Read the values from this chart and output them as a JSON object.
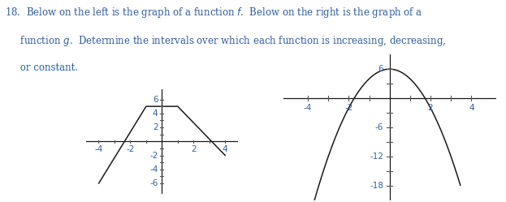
{
  "text_color": "#2e5fa3",
  "graph_bg": "#ffffff",
  "left_graph": {
    "x": [
      -4,
      -1,
      1,
      4
    ],
    "y": [
      -6,
      5,
      5,
      -2
    ],
    "xlim": [
      -4.8,
      4.8
    ],
    "ylim": [
      -7.5,
      7.5
    ],
    "x_ticks_minor": [
      -4,
      -3,
      -2,
      -1,
      1,
      2,
      3,
      4
    ],
    "y_ticks_minor": [
      -6,
      -5,
      -4,
      -3,
      -2,
      -1,
      1,
      2,
      3,
      4,
      5,
      6
    ],
    "xlabel_vals": [
      -4,
      -2,
      2,
      4
    ],
    "xlabel_labels": [
      "-4",
      "-2",
      "2",
      "4"
    ],
    "ylabel_vals": [
      -6,
      -4,
      -2,
      2,
      4,
      6
    ],
    "ylabel_labels": [
      "-6",
      "-4",
      "-2",
      "2",
      "4",
      "6"
    ]
  },
  "right_graph": {
    "a": -2,
    "b": 0,
    "c": 6,
    "x_start": -5.0,
    "x_end": 3.46,
    "xlim": [
      -5.2,
      5.2
    ],
    "ylim": [
      -21,
      9
    ],
    "x_ticks_minor": [
      -4,
      -3,
      -2,
      -1,
      1,
      2,
      3,
      4
    ],
    "y_ticks_minor": [
      -18,
      -15,
      -12,
      -9,
      -6,
      -3,
      3,
      6
    ],
    "xlabel_vals": [
      -4,
      -2,
      2,
      4
    ],
    "xlabel_labels": [
      "-4",
      "-2",
      "2",
      "4"
    ],
    "ylabel_vals": [
      -18,
      -12,
      -6,
      6
    ],
    "ylabel_labels": [
      "-18",
      "-12",
      "-6",
      "6"
    ]
  },
  "line_color": "#1a1a1a",
  "tick_color": "#555555",
  "label_color": "#2e5fa3",
  "axis_color": "#1a1a1a",
  "fontsize_text": 8.5,
  "fontsize_ticks": 7.5,
  "header_lines": [
    "18.  Below on the left is the graph of a function $f$.  Below on the right is the graph of a",
    "     function $g$.  Determine the intervals over which each function is increasing, decreasing,",
    "     or constant."
  ]
}
